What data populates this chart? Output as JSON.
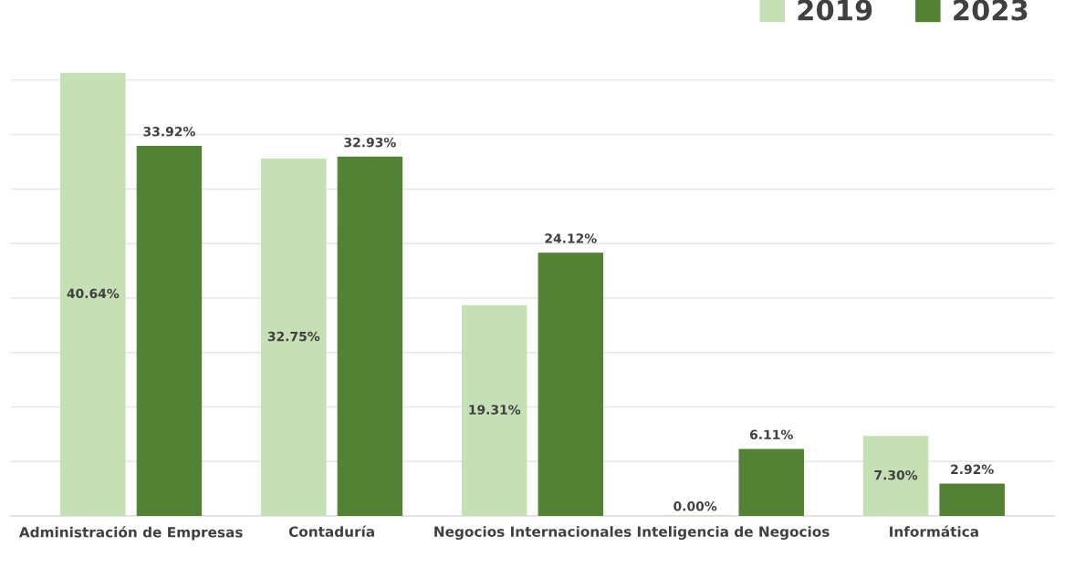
{
  "chart_data": {
    "type": "bar",
    "categories": [
      "Administración de Empresas",
      "Contaduría",
      "Negocios Internacionales",
      "Inteligencia de Negocios",
      "Informática"
    ],
    "series": [
      {
        "name": "2019",
        "color": "#c5e0b4",
        "values": [
          40.64,
          32.75,
          19.31,
          0.0,
          7.3
        ],
        "value_labels": [
          "40.64%",
          "32.75%",
          "19.31%",
          "0.00%",
          "7.30%"
        ]
      },
      {
        "name": "2023",
        "color": "#548235",
        "values": [
          33.92,
          32.93,
          24.12,
          6.11,
          2.92
        ],
        "value_labels": [
          "33.92%",
          "32.93%",
          "24.12%",
          "6.11%",
          "2.92%"
        ]
      }
    ],
    "yticks": [
      {
        "value": 0,
        "label": null
      },
      {
        "value": 5,
        "label": null
      },
      {
        "value": 10,
        "label": null
      },
      {
        "value": 15,
        "label": null
      },
      {
        "value": 20,
        "label": null
      },
      {
        "value": 25,
        "label": null
      },
      {
        "value": 30,
        "label": null
      },
      {
        "value": 35,
        "label": null
      },
      {
        "value": 40,
        "label": null
      }
    ],
    "grid": "y",
    "legend": "top right",
    "tick_labels": "x"
  }
}
